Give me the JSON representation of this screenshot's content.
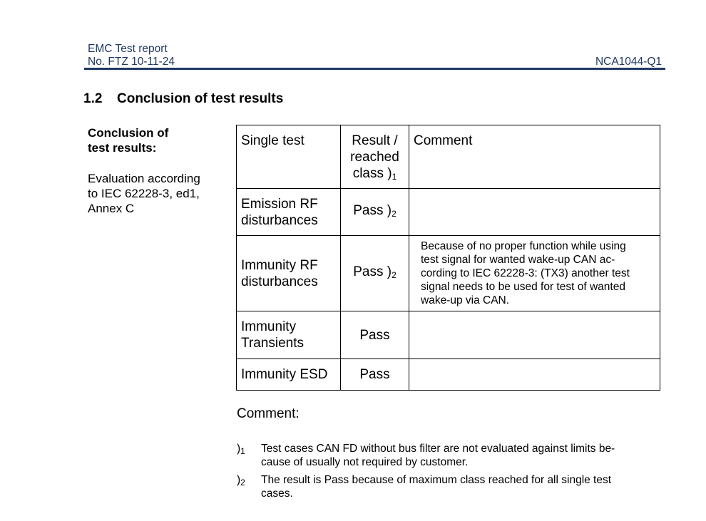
{
  "header": {
    "line1": "EMC Test report",
    "line2": "No. FTZ 10-11-24",
    "doc_id": "NCA1044-Q1"
  },
  "section": {
    "number": "1.2",
    "title": "Conclusion of test results"
  },
  "sidebar": {
    "heading_line1": "Conclusion of",
    "heading_line2": "test results:",
    "eval_lines": [
      "Evaluation according",
      "to IEC 62228-3, ed1,",
      "Annex C"
    ]
  },
  "table": {
    "headers": {
      "test": "Single test",
      "result_lines": [
        "Result /",
        "reached",
        "class )"
      ],
      "result_sub": "1",
      "comment": "Comment"
    },
    "rows": [
      {
        "test_lines": [
          "Emission RF",
          "disturbances"
        ],
        "result": "Pass )",
        "sub": "2",
        "comment_lines": []
      },
      {
        "test_lines": [
          "Immunity RF",
          "disturbances"
        ],
        "result": "Pass )",
        "sub": "2",
        "comment_lines": [
          "Because of no proper function while using",
          "test signal for wanted wake-up CAN ac-",
          "cording to IEC 62228-3: (TX3) another test",
          "signal needs to be used for test of wanted",
          "wake-up via CAN."
        ]
      },
      {
        "test_lines": [
          "Immunity",
          "Transients"
        ],
        "result": "Pass",
        "sub": "",
        "comment_lines": []
      },
      {
        "test_lines": [
          "Immunity ESD"
        ],
        "result": "Pass",
        "sub": "",
        "comment_lines": []
      }
    ]
  },
  "comment_label": "Comment:",
  "footnotes": [
    {
      "marker": ")",
      "sub": "1",
      "lines": [
        "Test cases CAN FD without bus filter are not evaluated against limits be-",
        "cause of usually not required by customer."
      ]
    },
    {
      "marker": ")",
      "sub": "2",
      "lines": [
        "The result is Pass because of maximum class reached for all single test",
        "cases."
      ]
    }
  ]
}
